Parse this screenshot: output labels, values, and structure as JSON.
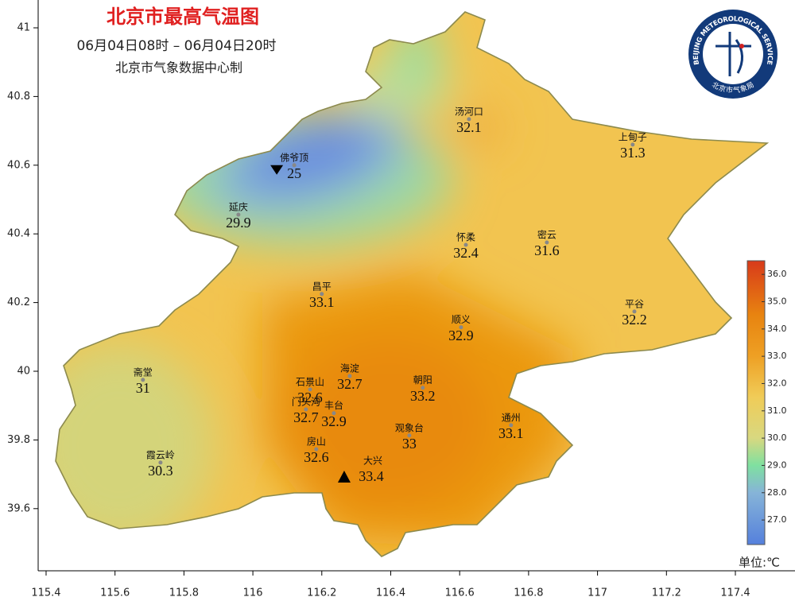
{
  "chart_data": {
    "type": "station-map",
    "title": "北京市最高气温图",
    "subtitle": "06月04日08时 – 06月04日20时",
    "source": "北京市气象数据中心制",
    "unit_label": "单位:℃",
    "logo": {
      "text": "BEIJING METEOROLOGICAL SERVICE",
      "name": "北京市气象局"
    },
    "xlim": [
      115.377,
      117.573
    ],
    "ylim": [
      39.419,
      41.081
    ],
    "xticks": [
      115.4,
      115.6,
      115.8,
      116,
      116.2,
      116.4,
      116.6,
      116.8,
      117,
      117.2,
      117.4
    ],
    "yticks": [
      39.6,
      39.8,
      40,
      40.2,
      40.4,
      40.6,
      40.8,
      41
    ],
    "stations": [
      {
        "name": "汤河口",
        "lon": 116.627,
        "lat": 40.734,
        "value": 32.1
      },
      {
        "name": "上甸子",
        "lon": 117.102,
        "lat": 40.66,
        "value": 31.3
      },
      {
        "name": "佛爷顶",
        "lon": 116.12,
        "lat": 40.6,
        "value": 25.0,
        "marker": "min"
      },
      {
        "name": "延庆",
        "lon": 115.958,
        "lat": 40.456,
        "value": 29.9
      },
      {
        "name": "怀柔",
        "lon": 116.618,
        "lat": 40.368,
        "value": 32.4
      },
      {
        "name": "密云",
        "lon": 116.853,
        "lat": 40.375,
        "value": 31.6
      },
      {
        "name": "昌平",
        "lon": 116.2,
        "lat": 40.225,
        "value": 33.1
      },
      {
        "name": "平谷",
        "lon": 117.107,
        "lat": 40.174,
        "value": 32.2
      },
      {
        "name": "顺义",
        "lon": 116.604,
        "lat": 40.128,
        "value": 32.9
      },
      {
        "name": "斋堂",
        "lon": 115.681,
        "lat": 39.975,
        "value": 31.0
      },
      {
        "name": "海淀",
        "lon": 116.281,
        "lat": 39.986,
        "value": 32.7
      },
      {
        "name": "石景山",
        "lon": 116.166,
        "lat": 39.947,
        "value": 32.6
      },
      {
        "name": "朝阳",
        "lon": 116.493,
        "lat": 39.952,
        "value": 33.2
      },
      {
        "name": "门头沟",
        "lon": 116.154,
        "lat": 39.889,
        "value": 32.7
      },
      {
        "name": "丰台",
        "lon": 116.235,
        "lat": 39.878,
        "value": 32.9
      },
      {
        "name": "通州",
        "lon": 116.749,
        "lat": 39.843,
        "value": 33.1
      },
      {
        "name": "观象台",
        "lon": 116.454,
        "lat": 39.813,
        "value": 33.0
      },
      {
        "name": "房山",
        "lon": 116.184,
        "lat": 39.773,
        "value": 32.6
      },
      {
        "name": "霞云岭",
        "lon": 115.732,
        "lat": 39.734,
        "value": 30.3
      },
      {
        "name": "大兴",
        "lon": 116.265,
        "lat": 39.692,
        "value": 33.4,
        "marker": "max"
      }
    ],
    "colorbar": {
      "range": [
        26.1,
        36.5
      ],
      "ticks": [
        {
          "value": 27,
          "label": "27.0"
        },
        {
          "value": 28,
          "label": "28.0"
        },
        {
          "value": 29,
          "label": "29.0"
        },
        {
          "value": 30,
          "label": "30.0"
        },
        {
          "value": 31,
          "label": "31.0"
        },
        {
          "value": 32,
          "label": "32.0"
        },
        {
          "value": 33,
          "label": "33.0"
        },
        {
          "value": 34,
          "label": "34.0"
        },
        {
          "value": 35,
          "label": "35.0"
        },
        {
          "value": 36,
          "label": "36.0"
        }
      ],
      "colors": [
        {
          "value": 26.1,
          "color": "#5580dc"
        },
        {
          "value": 28,
          "color": "#86b4d8"
        },
        {
          "value": 29,
          "color": "#7fe0a0"
        },
        {
          "value": 30,
          "color": "#d8d880"
        },
        {
          "value": 31.5,
          "color": "#f0cc58"
        },
        {
          "value": 33,
          "color": "#eea024"
        },
        {
          "value": 34.5,
          "color": "#e88410"
        },
        {
          "value": 36.5,
          "color": "#d83a1a"
        }
      ]
    }
  }
}
